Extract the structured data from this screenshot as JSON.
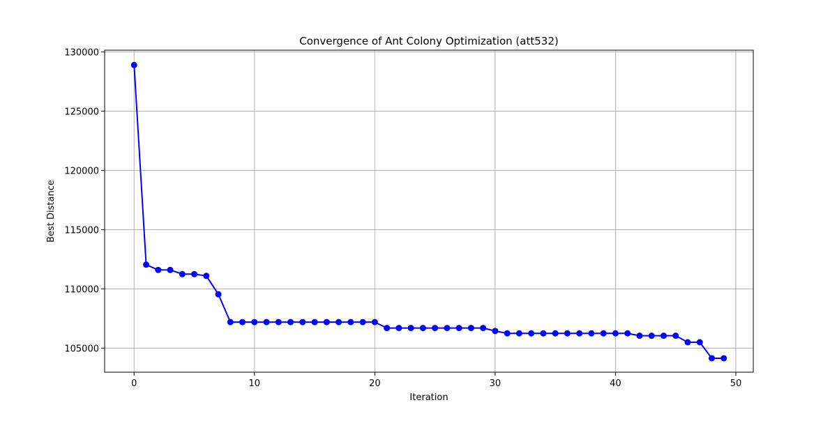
{
  "chart_data": {
    "type": "line",
    "title": "Convergence of Ant Colony Optimization (att532)",
    "xlabel": "Iteration",
    "ylabel": "Best Distance",
    "xlim": [
      -2.45,
      51.45
    ],
    "ylim": [
      102970,
      130150
    ],
    "xticks": [
      0,
      10,
      20,
      30,
      40,
      50
    ],
    "yticks": [
      105000,
      110000,
      115000,
      120000,
      125000,
      130000
    ],
    "grid": true,
    "line_color": "#0000ff",
    "marker": "circle",
    "series": [
      {
        "x": [
          0,
          1,
          2,
          3,
          4,
          5,
          6,
          7,
          8,
          9,
          10,
          11,
          12,
          13,
          14,
          15,
          16,
          17,
          18,
          19,
          20,
          21,
          22,
          23,
          24,
          25,
          26,
          27,
          28,
          29,
          30,
          31,
          32,
          33,
          34,
          35,
          36,
          37,
          38,
          39,
          40,
          41,
          42,
          43,
          44,
          45,
          46,
          47,
          48,
          49
        ],
        "values": [
          128900,
          112050,
          111600,
          111600,
          111250,
          111250,
          111100,
          109550,
          107200,
          107200,
          107200,
          107200,
          107200,
          107200,
          107200,
          107200,
          107200,
          107200,
          107200,
          107200,
          107200,
          106700,
          106700,
          106700,
          106700,
          106700,
          106700,
          106700,
          106700,
          106700,
          106450,
          106250,
          106250,
          106250,
          106250,
          106250,
          106250,
          106250,
          106250,
          106250,
          106250,
          106250,
          106050,
          106050,
          106050,
          106050,
          105500,
          105500,
          104150,
          104150
        ]
      }
    ]
  }
}
